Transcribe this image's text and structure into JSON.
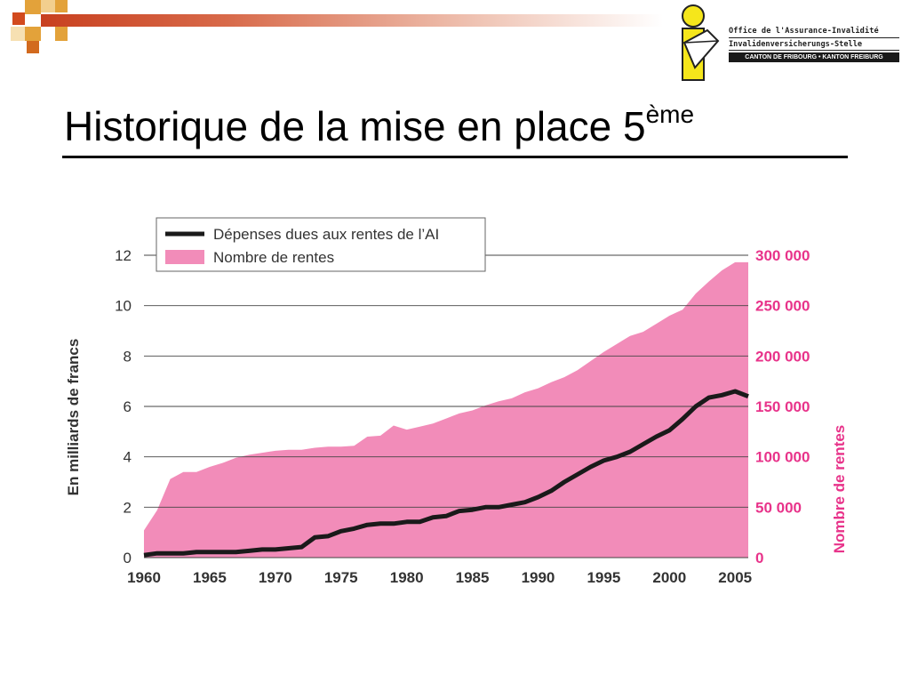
{
  "slide": {
    "title": "Historique de la mise en place 5",
    "title_sup": "ème"
  },
  "logo": {
    "line1": "Office de l'Assurance-Invalidité",
    "line2": "Invalidenversicherungs-Stelle",
    "line3": "CANTON DE FRIBOURG • KANTON FREIBURG",
    "icon": "ai-person-logo-icon"
  },
  "colors": {
    "area": "#f28cb9",
    "line": "#1a1a1a",
    "right_axis": "#e8338a",
    "topbar": "#c8401f",
    "logo_yellow": "#f5e61b"
  },
  "chart_data": {
    "type": "area",
    "legend": {
      "position": "top-left",
      "entries": [
        "Dépenses dues aux rentes de l’AI",
        "Nombre de rentes"
      ]
    },
    "xlim": [
      1960,
      2006
    ],
    "x_ticks": [
      "1960",
      "1965",
      "1970",
      "1975",
      "1980",
      "1985",
      "1990",
      "1995",
      "2000",
      "2005"
    ],
    "y_left": {
      "label": "En milliards de francs",
      "lim": [
        0,
        12
      ],
      "ticks": [
        "0",
        "2",
        "4",
        "6",
        "8",
        "10",
        "12"
      ]
    },
    "y_right": {
      "label": "Nombre de rentes",
      "lim": [
        0,
        300000
      ],
      "ticks": [
        "0",
        "50 000",
        "100 000",
        "150 000",
        "200 000",
        "250 000",
        "300 000"
      ]
    },
    "grid": "horizontal",
    "series": [
      {
        "name": "Nombre de rentes",
        "axis": "right",
        "type": "area",
        "x": [
          1960,
          1961,
          1962,
          1963,
          1964,
          1965,
          1966,
          1967,
          1968,
          1969,
          1970,
          1971,
          1972,
          1973,
          1974,
          1975,
          1976,
          1977,
          1978,
          1979,
          1980,
          1981,
          1982,
          1983,
          1984,
          1985,
          1986,
          1987,
          1988,
          1989,
          1990,
          1991,
          1992,
          1993,
          1994,
          1995,
          1996,
          1997,
          1998,
          1999,
          2000,
          2001,
          2002,
          2003,
          2004,
          2005,
          2006
        ],
        "values": [
          27000,
          47000,
          78000,
          85000,
          85000,
          90000,
          94000,
          99000,
          102000,
          104000,
          106000,
          107000,
          107000,
          109000,
          110000,
          110000,
          111000,
          120000,
          121000,
          131000,
          127000,
          130000,
          133000,
          138000,
          143000,
          146000,
          151000,
          155000,
          158000,
          164000,
          168000,
          174000,
          179000,
          186000,
          195000,
          204000,
          212000,
          220000,
          224000,
          232000,
          240000,
          246000,
          262000,
          274000,
          285000,
          293000,
          293000
        ]
      },
      {
        "name": "Dépenses dues aux rentes de l’AI",
        "axis": "left",
        "type": "line",
        "x": [
          1960,
          1961,
          1962,
          1963,
          1964,
          1965,
          1966,
          1967,
          1968,
          1969,
          1970,
          1971,
          1972,
          1973,
          1974,
          1975,
          1976,
          1977,
          1978,
          1979,
          1980,
          1981,
          1982,
          1983,
          1984,
          1985,
          1986,
          1987,
          1988,
          1989,
          1990,
          1991,
          1992,
          1993,
          1994,
          1995,
          1996,
          1997,
          1998,
          1999,
          2000,
          2001,
          2002,
          2003,
          2004,
          2005,
          2006
        ],
        "values": [
          0.1,
          0.17,
          0.17,
          0.17,
          0.22,
          0.22,
          0.22,
          0.22,
          0.27,
          0.32,
          0.32,
          0.37,
          0.42,
          0.8,
          0.85,
          1.05,
          1.15,
          1.3,
          1.35,
          1.35,
          1.42,
          1.42,
          1.6,
          1.65,
          1.85,
          1.9,
          2.0,
          2.0,
          2.1,
          2.2,
          2.4,
          2.65,
          3.0,
          3.3,
          3.6,
          3.85,
          4.0,
          4.2,
          4.5,
          4.8,
          5.05,
          5.5,
          6.0,
          6.35,
          6.45,
          6.6,
          6.4
        ]
      }
    ]
  }
}
